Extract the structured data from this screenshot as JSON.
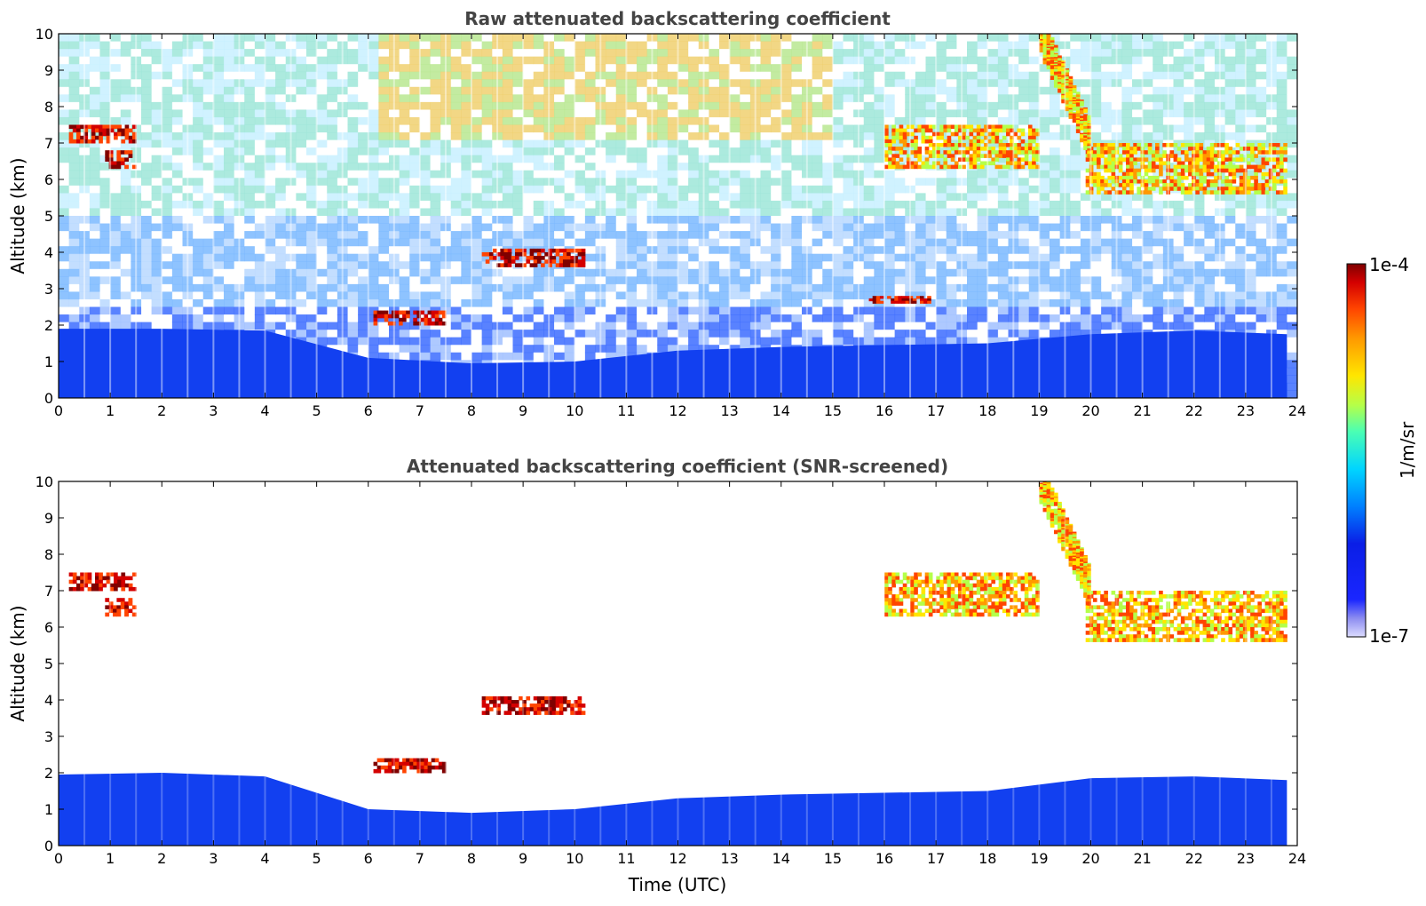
{
  "chart_data": [
    {
      "type": "heatmap",
      "title": "Raw attenuated backscattering coefficient",
      "xlabel": "",
      "ylabel": "Altitude (km)",
      "xlim": [
        0,
        24
      ],
      "ylim": [
        0,
        10
      ],
      "xticks": [
        0,
        1,
        2,
        3,
        4,
        5,
        6,
        7,
        8,
        9,
        10,
        11,
        12,
        13,
        14,
        15,
        16,
        17,
        18,
        19,
        20,
        21,
        22,
        23,
        24
      ],
      "yticks": [
        0,
        1,
        2,
        3,
        4,
        5,
        6,
        7,
        8,
        9,
        10
      ],
      "boundary_layer": [
        [
          0,
          1.9
        ],
        [
          2,
          1.9
        ],
        [
          4,
          1.85
        ],
        [
          6,
          1.1
        ],
        [
          8,
          0.95
        ],
        [
          10,
          1.0
        ],
        [
          12,
          1.3
        ],
        [
          14,
          1.4
        ],
        [
          16,
          1.45
        ],
        [
          18,
          1.5
        ],
        [
          20,
          1.75
        ],
        [
          22,
          1.85
        ],
        [
          23.8,
          1.75
        ]
      ],
      "features": [
        {
          "name": "cloud-layer",
          "x0": 0.2,
          "x1": 1.5,
          "y0": 7.0,
          "y1": 7.5,
          "level": "high"
        },
        {
          "name": "cloud-layer",
          "x0": 0.9,
          "x1": 1.5,
          "y0": 6.3,
          "y1": 6.8,
          "level": "high"
        },
        {
          "name": "aerosol-layer",
          "x0": 8.2,
          "x1": 10.2,
          "y0": 3.6,
          "y1": 4.1,
          "level": "high"
        },
        {
          "name": "aerosol-layer",
          "x0": 6.1,
          "x1": 7.5,
          "y0": 2.0,
          "y1": 2.4,
          "level": "high"
        },
        {
          "name": "aerosol-layer",
          "x0": 15.7,
          "x1": 16.9,
          "y0": 2.6,
          "y1": 2.8,
          "level": "high"
        },
        {
          "name": "cirrus",
          "x0": 16.0,
          "x1": 19.0,
          "y0": 6.3,
          "y1": 7.5,
          "level": "mid"
        },
        {
          "name": "cirrus",
          "x0": 19.9,
          "x1": 23.8,
          "y0": 5.6,
          "y1": 7.0,
          "level": "mid"
        },
        {
          "name": "cirrus-fall",
          "x0": 19.0,
          "x1": 20.0,
          "y0": 7.0,
          "y1": 10.0,
          "level": "mid"
        }
      ]
    },
    {
      "type": "heatmap",
      "title": "Attenuated backscattering coefficient (SNR-screened)",
      "xlabel": "Time (UTC)",
      "ylabel": "Altitude (km)",
      "xlim": [
        0,
        24
      ],
      "ylim": [
        0,
        10
      ],
      "xticks": [
        0,
        1,
        2,
        3,
        4,
        5,
        6,
        7,
        8,
        9,
        10,
        11,
        12,
        13,
        14,
        15,
        16,
        17,
        18,
        19,
        20,
        21,
        22,
        23,
        24
      ],
      "yticks": [
        0,
        1,
        2,
        3,
        4,
        5,
        6,
        7,
        8,
        9,
        10
      ],
      "boundary_layer": [
        [
          0,
          1.95
        ],
        [
          2,
          2.0
        ],
        [
          4,
          1.9
        ],
        [
          6,
          1.0
        ],
        [
          8,
          0.9
        ],
        [
          10,
          1.0
        ],
        [
          12,
          1.3
        ],
        [
          14,
          1.4
        ],
        [
          16,
          1.45
        ],
        [
          18,
          1.5
        ],
        [
          20,
          1.85
        ],
        [
          22,
          1.9
        ],
        [
          23.8,
          1.8
        ]
      ],
      "features": [
        {
          "name": "cloud-layer",
          "x0": 0.2,
          "x1": 1.5,
          "y0": 7.0,
          "y1": 7.5,
          "level": "high"
        },
        {
          "name": "cloud-layer",
          "x0": 0.9,
          "x1": 1.5,
          "y0": 6.3,
          "y1": 6.8,
          "level": "high"
        },
        {
          "name": "aerosol-layer",
          "x0": 8.2,
          "x1": 10.2,
          "y0": 3.6,
          "y1": 4.1,
          "level": "high"
        },
        {
          "name": "aerosol-layer",
          "x0": 6.1,
          "x1": 7.5,
          "y0": 2.0,
          "y1": 2.4,
          "level": "high"
        },
        {
          "name": "cirrus",
          "x0": 16.0,
          "x1": 19.0,
          "y0": 6.3,
          "y1": 7.5,
          "level": "mid"
        },
        {
          "name": "cirrus",
          "x0": 19.9,
          "x1": 23.8,
          "y0": 5.6,
          "y1": 7.0,
          "level": "mid"
        },
        {
          "name": "cirrus-fall",
          "x0": 19.0,
          "x1": 20.0,
          "y0": 7.0,
          "y1": 10.0,
          "level": "mid"
        }
      ]
    }
  ],
  "colorbar": {
    "label": "1/m/sr",
    "max_label": "1e-4",
    "min_label": "1e-7",
    "colors": [
      "#7f0000",
      "#d40000",
      "#ff4400",
      "#ff9900",
      "#ffe600",
      "#b4ff4a",
      "#4affb4",
      "#00d5ff",
      "#0080ff",
      "#0a1ee6",
      "#1a26ff",
      "#8c8cf0",
      "#dcdcff"
    ]
  },
  "colors": {
    "text_title": "#444444",
    "frame": "#000000",
    "bl_blue": "#1240f0",
    "noise_light": "#c8e6ff"
  }
}
